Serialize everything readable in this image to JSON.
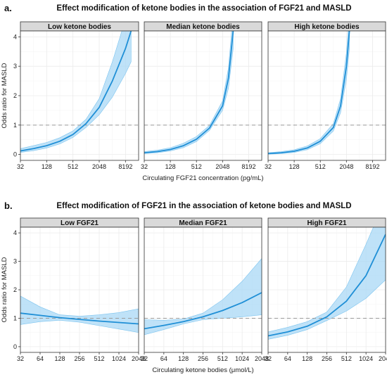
{
  "chart_data": [
    {
      "type": "line",
      "panel_label": "a.",
      "title": "Effect modification of ketone bodies in the association of FGF21 and MASLD",
      "xlabel": "Circulating FGF21 concentration (pg/mL)",
      "ylabel": "Odds ratio for MASLD",
      "x_scale": "log2",
      "xlim": [
        32,
        16384
      ],
      "ylim": [
        -0.2,
        4.2
      ],
      "x_ticks": [
        32,
        128,
        512,
        2048,
        8192
      ],
      "x_tick_labels": [
        "32",
        "128",
        "512",
        "2048",
        "8192"
      ],
      "y_ticks": [
        0,
        1,
        2,
        3,
        4
      ],
      "y_tick_labels": [
        "0",
        "1",
        "2",
        "3",
        "4"
      ],
      "reference_line": 1,
      "grid": true,
      "line_color": "#1f8fd6",
      "band_color": "#a9d8f5",
      "series": [
        {
          "name": "Low ketone bodies",
          "x": [
            32,
            64,
            128,
            256,
            512,
            1024,
            2048,
            4096,
            8192,
            11000
          ],
          "y": [
            0.12,
            0.2,
            0.3,
            0.45,
            0.68,
            1.05,
            1.6,
            2.5,
            3.6,
            4.2
          ],
          "lower": [
            0.07,
            0.13,
            0.22,
            0.36,
            0.58,
            0.92,
            1.35,
            1.95,
            2.75,
            3.15
          ],
          "upper": [
            0.2,
            0.3,
            0.41,
            0.57,
            0.8,
            1.2,
            1.9,
            3.15,
            4.6,
            5.3
          ]
        },
        {
          "name": "Median ketone bodies",
          "x": [
            32,
            64,
            128,
            256,
            512,
            1024,
            2048,
            2800,
            3600
          ],
          "y": [
            0.06,
            0.1,
            0.17,
            0.3,
            0.52,
            0.9,
            1.65,
            2.6,
            4.2
          ],
          "lower": [
            0.03,
            0.06,
            0.12,
            0.23,
            0.44,
            0.82,
            1.5,
            2.25,
            3.6
          ],
          "upper": [
            0.1,
            0.15,
            0.23,
            0.38,
            0.61,
            0.99,
            1.82,
            2.95,
            4.8
          ]
        },
        {
          "name": "High ketone bodies",
          "x": [
            32,
            64,
            128,
            256,
            512,
            1024,
            1500,
            2048,
            2400
          ],
          "y": [
            0.03,
            0.06,
            0.11,
            0.22,
            0.45,
            0.92,
            1.65,
            3.0,
            4.2
          ],
          "lower": [
            0.01,
            0.03,
            0.07,
            0.16,
            0.37,
            0.8,
            1.42,
            2.55,
            3.6
          ],
          "upper": [
            0.06,
            0.1,
            0.16,
            0.29,
            0.54,
            1.05,
            1.9,
            3.45,
            4.8
          ]
        }
      ]
    },
    {
      "type": "line",
      "panel_label": "b.",
      "title": "Effect modification of FGF21 in the association of ketone bodies and MASLD",
      "xlabel": "Circulating ketone bodies (μmol/L)",
      "ylabel": "Odds ratio for MASLD",
      "x_scale": "log2",
      "xlim": [
        32,
        2048
      ],
      "ylim": [
        -0.2,
        4.2
      ],
      "x_ticks": [
        32,
        64,
        128,
        256,
        512,
        1024,
        2048
      ],
      "x_tick_labels": [
        "32",
        "64",
        "128",
        "256",
        "512",
        "1024",
        "2048"
      ],
      "y_ticks": [
        0,
        1,
        2,
        3,
        4
      ],
      "y_tick_labels": [
        "0",
        "1",
        "2",
        "3",
        "4"
      ],
      "reference_line": 1,
      "grid": true,
      "line_color": "#1f8fd6",
      "band_color": "#a9d8f5",
      "series": [
        {
          "name": "Low FGF21",
          "x": [
            32,
            64,
            128,
            256,
            512,
            1024,
            2048
          ],
          "y": [
            1.18,
            1.1,
            1.02,
            0.96,
            0.9,
            0.85,
            0.8
          ],
          "lower": [
            0.78,
            0.88,
            0.93,
            0.86,
            0.74,
            0.62,
            0.5
          ],
          "upper": [
            1.78,
            1.4,
            1.12,
            1.07,
            1.12,
            1.2,
            1.33
          ]
        },
        {
          "name": "Median FGF21",
          "x": [
            32,
            64,
            128,
            256,
            512,
            1024,
            2048
          ],
          "y": [
            0.63,
            0.75,
            0.88,
            1.05,
            1.27,
            1.55,
            1.9
          ],
          "lower": [
            0.42,
            0.6,
            0.8,
            0.95,
            1.0,
            1.05,
            1.12
          ],
          "upper": [
            0.95,
            0.93,
            0.97,
            1.18,
            1.65,
            2.3,
            3.1
          ]
        },
        {
          "name": "High FGF21",
          "x": [
            32,
            64,
            128,
            256,
            512,
            1024,
            2048
          ],
          "y": [
            0.38,
            0.52,
            0.72,
            1.05,
            1.6,
            2.5,
            3.95
          ],
          "lower": [
            0.26,
            0.4,
            0.6,
            0.92,
            1.25,
            1.7,
            2.35
          ],
          "upper": [
            0.52,
            0.68,
            0.88,
            1.22,
            2.1,
            3.6,
            5.2
          ]
        }
      ]
    }
  ]
}
